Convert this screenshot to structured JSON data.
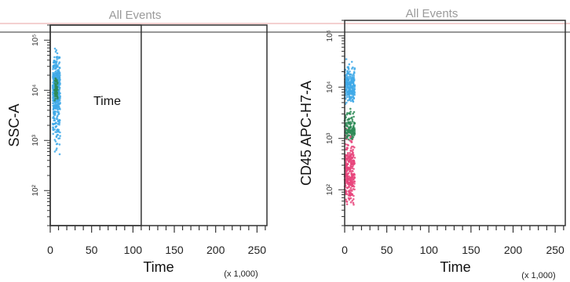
{
  "chart_data": [
    {
      "type": "scatter",
      "title": "All Events",
      "xlabel": "Time",
      "x_unit": "(x 1,000)",
      "ylabel": "SSC-A",
      "xlim": [
        0,
        262
      ],
      "y_scale": "log",
      "ylim": [
        20,
        200000
      ],
      "x_ticks": [
        0,
        50,
        100,
        150,
        200,
        250
      ],
      "x_tick_labels": [
        "0",
        "50",
        "100",
        "150",
        "200",
        "250"
      ],
      "y_ticks": [
        100,
        1000,
        10000,
        100000
      ],
      "y_tick_labels": [
        "10²",
        "10³",
        "10⁴",
        "10⁵"
      ],
      "gate": {
        "label": "Time",
        "x_range": [
          0,
          110
        ]
      },
      "series": [
        {
          "color": "#3fa9e8",
          "x_range": [
            3,
            12
          ],
          "y_range": [
            400,
            90000
          ],
          "y_center": 10000,
          "n": 420
        },
        {
          "color": "#2e8b57",
          "x_range": [
            5,
            9
          ],
          "y_range": [
            5000,
            20000
          ],
          "y_center": 10000,
          "n": 60
        }
      ]
    },
    {
      "type": "scatter",
      "title": "All Events",
      "xlabel": "Time",
      "x_unit": "(x 1,000)",
      "ylabel": "CD45 APC-H7-A",
      "xlim": [
        0,
        262
      ],
      "y_scale": "log",
      "ylim": [
        20,
        200000
      ],
      "x_ticks": [
        0,
        50,
        100,
        150,
        200,
        250
      ],
      "x_tick_labels": [
        "0",
        "50",
        "100",
        "150",
        "200",
        "250"
      ],
      "y_ticks": [
        100,
        1000,
        10000,
        100000
      ],
      "y_tick_labels": [
        "10²",
        "10³",
        "10⁴",
        "10⁵"
      ],
      "series": [
        {
          "color": "#e8457c",
          "x_range": [
            0,
            12
          ],
          "y_range": [
            40,
            3000
          ],
          "y_center": 200,
          "n": 320
        },
        {
          "color": "#2e8b57",
          "x_range": [
            0,
            12
          ],
          "y_range": [
            800,
            5000
          ],
          "y_center": 1500,
          "n": 130
        },
        {
          "color": "#3fa9e8",
          "x_range": [
            0,
            12
          ],
          "y_range": [
            4000,
            40000
          ],
          "y_center": 10000,
          "n": 230
        }
      ]
    }
  ],
  "colors": {
    "frame": "#333333",
    "top_line": "#e8a0a0"
  }
}
